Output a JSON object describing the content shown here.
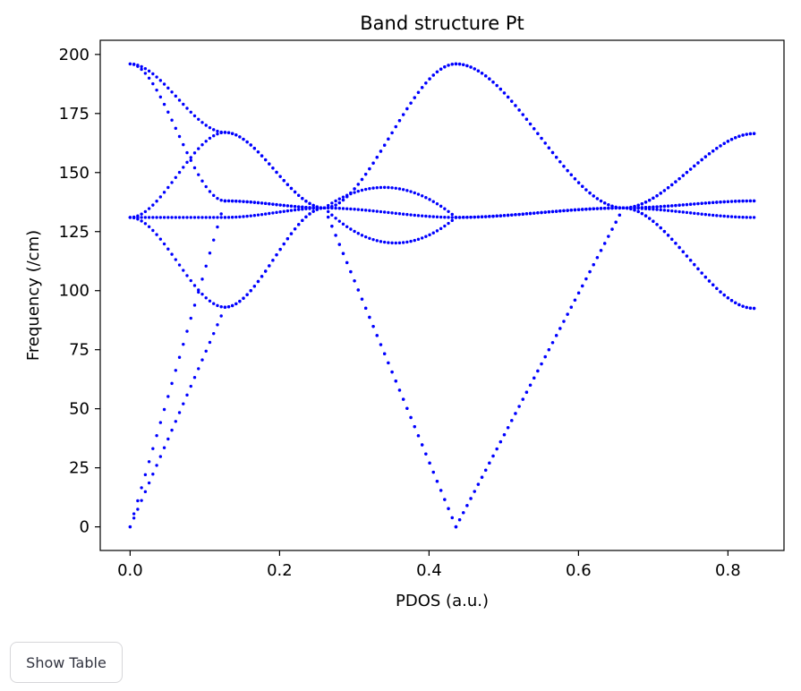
{
  "chart_data": {
    "type": "scatter",
    "title": "Band structure Pt",
    "xlabel": "PDOS (a.u.)",
    "ylabel": "Frequency (/cm)",
    "xlim": [
      -0.04,
      0.875
    ],
    "ylim": [
      -10,
      206
    ],
    "xticks": [
      0.0,
      0.2,
      0.4,
      0.6,
      0.8
    ],
    "xtick_labels": [
      "0.0",
      "0.2",
      "0.4",
      "0.6",
      "0.8"
    ],
    "yticks": [
      0,
      25,
      50,
      75,
      100,
      125,
      150,
      175,
      200
    ],
    "ytick_labels": [
      "0",
      "25",
      "50",
      "75",
      "100",
      "125",
      "150",
      "175",
      "200"
    ],
    "grid": false,
    "marker_color": "#0000ff",
    "special_points_x": [
      0.0,
      0.127,
      0.26,
      0.436,
      0.66,
      0.835
    ],
    "series": [
      {
        "segments": [
          {
            "x": [
              0.0,
              0.127
            ],
            "y": [
              131,
              93
            ]
          },
          {
            "x": [
              0.127,
              0.26
            ],
            "y": [
              93,
              135
            ]
          },
          {
            "x": [
              0.26,
              0.31,
              0.436
            ],
            "y": [
              135,
              123.5,
              131
            ]
          },
          {
            "x": [
              0.436,
              0.66
            ],
            "y": [
              131,
              135
            ]
          },
          {
            "x": [
              0.66,
              0.835
            ],
            "y": [
              135,
              92.5
            ]
          }
        ]
      },
      {
        "segments": [
          {
            "x": [
              0.0,
              0.127
            ],
            "y": [
              131,
              167
            ]
          },
          {
            "x": [
              0.127,
              0.26
            ],
            "y": [
              167,
              135
            ]
          },
          {
            "x": [
              0.26,
              0.31,
              0.436
            ],
            "y": [
              135,
              142.5,
              131
            ]
          },
          {
            "x": [
              0.436,
              0.66
            ],
            "y": [
              131,
              135
            ]
          },
          {
            "x": [
              0.66,
              0.835
            ],
            "y": [
              135,
              166.5
            ]
          }
        ]
      },
      {
        "segments": [
          {
            "x": [
              0.0,
              0.127
            ],
            "y": [
              131,
              131
            ]
          },
          {
            "x": [
              0.127,
              0.26
            ],
            "y": [
              131,
              135
            ]
          },
          {
            "x": [
              0.26,
              0.436
            ],
            "y": [
              135,
              131
            ]
          },
          {
            "x": [
              0.436,
              0.66
            ],
            "y": [
              131,
              135
            ]
          },
          {
            "x": [
              0.66,
              0.835
            ],
            "y": [
              135,
              131
            ]
          }
        ]
      },
      {
        "segments": [
          {
            "x": [
              0.0,
              0.127
            ],
            "y": [
              196,
              167
            ]
          },
          {
            "x": [
              0.127,
              0.26
            ],
            "y": [
              138,
              135
            ]
          },
          {
            "x": [
              0.26,
              0.436
            ],
            "y": [
              135,
              196
            ]
          },
          {
            "x": [
              0.436,
              0.66
            ],
            "y": [
              196,
              135
            ]
          },
          {
            "x": [
              0.66,
              0.835
            ],
            "y": [
              135,
              138
            ]
          }
        ]
      },
      {
        "segments": [
          {
            "x": [
              0.0,
              0.127
            ],
            "y": [
              196,
              138
            ]
          },
          {
            "x": [
              0.127,
              0.26
            ],
            "y": [
              138,
              135
            ]
          },
          {
            "x": [
              0.26,
              0.436
            ],
            "y": [
              135,
              0
            ]
          },
          {
            "x": [
              0.436,
              0.66
            ],
            "y": [
              0,
              135
            ]
          },
          {
            "x": [
              0.66,
              0.835
            ],
            "y": [
              135,
              138
            ]
          }
        ]
      },
      {
        "segments": [
          {
            "x": [
              0.0,
              0.127
            ],
            "y": [
              0,
              138
            ]
          },
          {
            "x": [
              0.127,
              0.26
            ],
            "y": [
              93,
              135
            ]
          },
          {
            "x": [
              0.26,
              0.436
            ],
            "y": [
              135,
              0
            ]
          },
          {
            "x": [
              0.436,
              0.66
            ],
            "y": [
              0,
              135
            ]
          },
          {
            "x": [
              0.66,
              0.835
            ],
            "y": [
              135,
              92.5
            ]
          }
        ]
      },
      {
        "segments": [
          {
            "x": [
              0.0,
              0.127
            ],
            "y": [
              0,
              93
            ]
          },
          {
            "x": [
              0.127,
              0.26
            ],
            "y": [
              167,
              135
            ]
          },
          {
            "x": [
              0.26,
              0.436
            ],
            "y": [
              135,
              196
            ]
          },
          {
            "x": [
              0.436,
              0.66
            ],
            "y": [
              196,
              135
            ]
          },
          {
            "x": [
              0.66,
              0.835
            ],
            "y": [
              135,
              166.5
            ]
          }
        ]
      }
    ]
  },
  "controls": {
    "show_table_label": "Show Table"
  }
}
